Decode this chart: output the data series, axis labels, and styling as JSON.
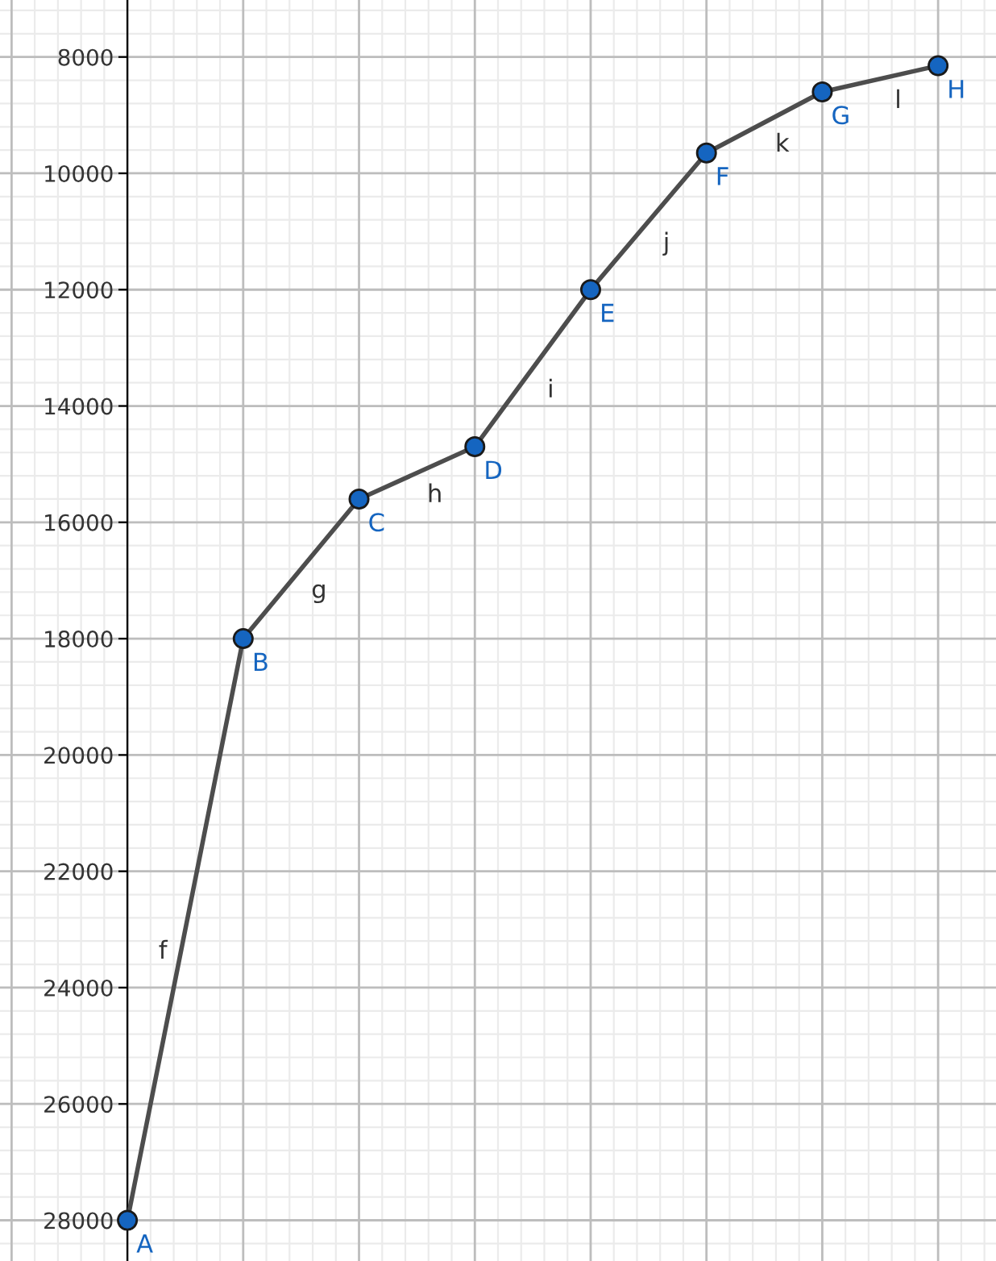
{
  "chart_data": {
    "type": "line",
    "categories": [
      null,
      null,
      null,
      null,
      null,
      null,
      null,
      null
    ],
    "series": [
      {
        "color": "#4d4d4d",
        "colors": [
          "#1565c0",
          "#1565c0",
          "#1565c0",
          "#1565c0",
          "#1565c0",
          "#1565c0",
          "#1565c0",
          "#1565c0"
        ],
        "values": [
          28000,
          18000,
          15600,
          14700,
          12000,
          9650,
          8600,
          8150
        ]
      }
    ],
    "marker": "circle",
    "line_style": "solid",
    "ylim": [
      28700,
      7020
    ],
    "yticks": [
      8000,
      10000,
      12000,
      14000,
      16000,
      18000,
      20000,
      22000,
      24000,
      26000,
      28000
    ],
    "grid": true,
    "annotations": [
      "A",
      "B",
      "C",
      "D",
      "E",
      "F",
      "G",
      "H",
      "f",
      "g",
      "h",
      "i",
      "j",
      "k",
      "l"
    ]
  }
}
